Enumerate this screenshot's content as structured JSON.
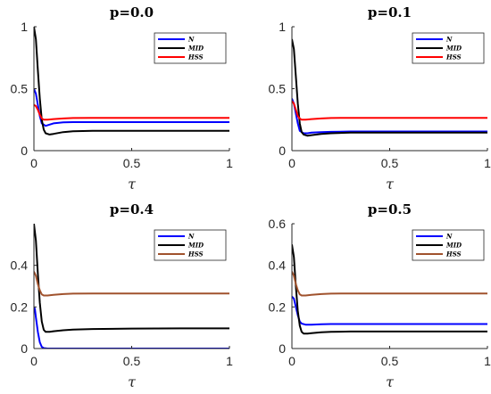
{
  "chart_data": [
    {
      "type": "line",
      "title": "p=0.0",
      "xlabel": "τ",
      "ylabel": "",
      "xlim": [
        0,
        1
      ],
      "ylim": [
        0,
        1
      ],
      "xticks": [
        0,
        0.5,
        1
      ],
      "yticks": [
        0,
        0.5,
        1
      ],
      "xtick_labels": [
        "0",
        "0.5",
        "1"
      ],
      "ytick_labels": [
        "0",
        "0.5",
        "1"
      ],
      "legend_position": "top-right",
      "series": [
        {
          "name": "N",
          "color": "#0000ff",
          "x": [
            0,
            0.01,
            0.02,
            0.03,
            0.04,
            0.06,
            0.08,
            0.1,
            0.15,
            0.2,
            0.3,
            0.5,
            0.75,
            1.0
          ],
          "y": [
            0.5,
            0.46,
            0.37,
            0.28,
            0.22,
            0.2,
            0.21,
            0.22,
            0.228,
            0.23,
            0.23,
            0.23,
            0.23,
            0.23
          ]
        },
        {
          "name": "MID",
          "color": "#000000",
          "x": [
            0,
            0.01,
            0.02,
            0.03,
            0.04,
            0.05,
            0.06,
            0.08,
            0.1,
            0.15,
            0.2,
            0.3,
            0.5,
            0.75,
            1.0
          ],
          "y": [
            1.0,
            0.9,
            0.65,
            0.42,
            0.25,
            0.17,
            0.14,
            0.13,
            0.135,
            0.15,
            0.157,
            0.16,
            0.16,
            0.16,
            0.16
          ]
        },
        {
          "name": "HSS",
          "color": "#ff0000",
          "x": [
            0,
            0.01,
            0.02,
            0.03,
            0.04,
            0.05,
            0.07,
            0.1,
            0.15,
            0.2,
            0.3,
            0.5,
            0.75,
            1.0
          ],
          "y": [
            0.37,
            0.36,
            0.33,
            0.29,
            0.26,
            0.25,
            0.25,
            0.255,
            0.26,
            0.263,
            0.265,
            0.265,
            0.265,
            0.265
          ]
        }
      ]
    },
    {
      "type": "line",
      "title": "p=0.1",
      "xlabel": "τ",
      "ylabel": "",
      "xlim": [
        0,
        1
      ],
      "ylim": [
        0,
        1
      ],
      "xticks": [
        0,
        0.5,
        1
      ],
      "yticks": [
        0,
        0.5,
        1
      ],
      "xtick_labels": [
        "0",
        "0.5",
        "1"
      ],
      "ytick_labels": [
        "0",
        "0.5",
        "1"
      ],
      "legend_position": "top-right",
      "series": [
        {
          "name": "N",
          "color": "#0000ff",
          "x": [
            0,
            0.01,
            0.02,
            0.03,
            0.04,
            0.06,
            0.08,
            0.1,
            0.15,
            0.2,
            0.3,
            0.5,
            0.75,
            1.0
          ],
          "y": [
            0.42,
            0.38,
            0.3,
            0.22,
            0.16,
            0.14,
            0.14,
            0.145,
            0.15,
            0.152,
            0.155,
            0.155,
            0.155,
            0.155
          ]
        },
        {
          "name": "MID",
          "color": "#000000",
          "x": [
            0,
            0.01,
            0.02,
            0.03,
            0.04,
            0.05,
            0.06,
            0.08,
            0.1,
            0.15,
            0.2,
            0.3,
            0.5,
            0.75,
            1.0
          ],
          "y": [
            0.9,
            0.82,
            0.6,
            0.38,
            0.22,
            0.15,
            0.13,
            0.12,
            0.125,
            0.135,
            0.14,
            0.145,
            0.145,
            0.145,
            0.145
          ]
        },
        {
          "name": "HSS",
          "color": "#ff0000",
          "x": [
            0,
            0.01,
            0.02,
            0.03,
            0.04,
            0.05,
            0.07,
            0.1,
            0.15,
            0.2,
            0.3,
            0.5,
            0.75,
            1.0
          ],
          "y": [
            0.4,
            0.38,
            0.33,
            0.28,
            0.26,
            0.25,
            0.25,
            0.255,
            0.26,
            0.263,
            0.265,
            0.265,
            0.265,
            0.265
          ]
        }
      ]
    },
    {
      "type": "line",
      "title": "p=0.4",
      "xlabel": "τ",
      "ylabel": "",
      "xlim": [
        0,
        1
      ],
      "ylim": [
        0,
        0.6
      ],
      "xticks": [
        0,
        0.5,
        1
      ],
      "yticks": [
        0,
        0.2,
        0.4
      ],
      "xtick_labels": [
        "0",
        "0.5",
        "1"
      ],
      "ytick_labels": [
        "0",
        "0.2",
        "0.4"
      ],
      "legend_position": "top-right",
      "series": [
        {
          "name": "N",
          "color": "#0000ff",
          "x": [
            0,
            0.005,
            0.01,
            0.02,
            0.03,
            0.04,
            0.05,
            0.07,
            0.1,
            0.3,
            0.5,
            0.75,
            1.0
          ],
          "y": [
            0.2,
            0.19,
            0.15,
            0.08,
            0.03,
            0.008,
            0.002,
            0,
            0,
            0,
            0,
            0,
            0
          ]
        },
        {
          "name": "MID",
          "color": "#000000",
          "x": [
            0,
            0.01,
            0.02,
            0.03,
            0.04,
            0.05,
            0.06,
            0.08,
            0.1,
            0.15,
            0.2,
            0.3,
            0.5,
            0.75,
            1.0
          ],
          "y": [
            0.6,
            0.52,
            0.36,
            0.22,
            0.13,
            0.09,
            0.08,
            0.08,
            0.083,
            0.088,
            0.091,
            0.094,
            0.096,
            0.097,
            0.097
          ]
        },
        {
          "name": "HSS",
          "color": "#a0522d",
          "x": [
            0,
            0.01,
            0.02,
            0.03,
            0.04,
            0.05,
            0.07,
            0.1,
            0.15,
            0.2,
            0.3,
            0.5,
            0.75,
            1.0
          ],
          "y": [
            0.37,
            0.35,
            0.31,
            0.28,
            0.26,
            0.255,
            0.255,
            0.258,
            0.262,
            0.264,
            0.265,
            0.265,
            0.265,
            0.265
          ]
        }
      ]
    },
    {
      "type": "line",
      "title": "p=0.5",
      "xlabel": "τ",
      "ylabel": "",
      "xlim": [
        0,
        1
      ],
      "ylim": [
        0,
        0.6
      ],
      "xticks": [
        0,
        0.5,
        1
      ],
      "yticks": [
        0,
        0.2,
        0.4,
        0.6
      ],
      "xtick_labels": [
        "0",
        "0.5",
        "1"
      ],
      "ytick_labels": [
        "0",
        "0.2",
        "0.4",
        "0.6"
      ],
      "legend_position": "top-right",
      "series": [
        {
          "name": "N",
          "color": "#0000ff",
          "x": [
            0,
            0.01,
            0.02,
            0.03,
            0.04,
            0.05,
            0.07,
            0.1,
            0.15,
            0.2,
            0.3,
            0.5,
            0.75,
            1.0
          ],
          "y": [
            0.25,
            0.24,
            0.2,
            0.16,
            0.13,
            0.12,
            0.115,
            0.115,
            0.117,
            0.118,
            0.118,
            0.118,
            0.118,
            0.118
          ]
        },
        {
          "name": "MID",
          "color": "#000000",
          "x": [
            0,
            0.01,
            0.02,
            0.03,
            0.04,
            0.05,
            0.06,
            0.08,
            0.1,
            0.15,
            0.2,
            0.3,
            0.5,
            0.75,
            1.0
          ],
          "y": [
            0.5,
            0.44,
            0.3,
            0.18,
            0.11,
            0.08,
            0.072,
            0.072,
            0.074,
            0.078,
            0.08,
            0.082,
            0.082,
            0.082,
            0.082
          ]
        },
        {
          "name": "HSS",
          "color": "#a0522d",
          "x": [
            0,
            0.01,
            0.02,
            0.03,
            0.04,
            0.05,
            0.07,
            0.1,
            0.15,
            0.2,
            0.3,
            0.5,
            0.75,
            1.0
          ],
          "y": [
            0.37,
            0.35,
            0.31,
            0.28,
            0.26,
            0.255,
            0.255,
            0.258,
            0.262,
            0.264,
            0.265,
            0.265,
            0.265,
            0.265
          ]
        }
      ]
    }
  ]
}
